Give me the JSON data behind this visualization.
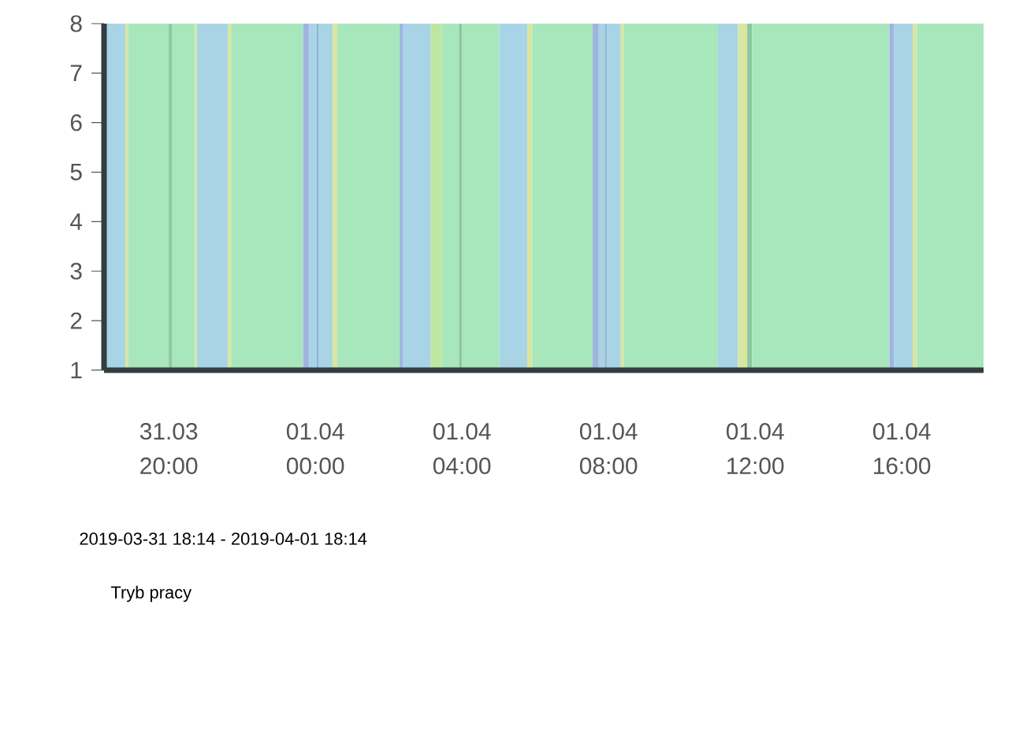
{
  "chart_data": {
    "type": "area",
    "xlim": [
      "2019-03-31T18:14",
      "2019-04-01T18:14"
    ],
    "xticks": [
      {
        "value": "2019-03-31T20:00",
        "label": "31.03 20:00"
      },
      {
        "value": "2019-04-01T00:00",
        "label": "01.04 00:00"
      },
      {
        "value": "2019-04-01T04:00",
        "label": "01.04 04:00"
      },
      {
        "value": "2019-04-01T08:00",
        "label": "01.04 08:00"
      },
      {
        "value": "2019-04-01T12:00",
        "label": "01.04 12:00"
      },
      {
        "value": "2019-04-01T16:00",
        "label": "01.04 16:00"
      }
    ],
    "ylim": [
      1,
      8
    ],
    "yticks": [
      1,
      2,
      3,
      4,
      5,
      6,
      7,
      8
    ],
    "series": [
      {
        "color": "#a8d4e6",
        "x": [
          "2019-03-31T18:14",
          "2019-03-31T18:49"
        ],
        "values": [
          8,
          8
        ]
      },
      {
        "color": "#d8e6a0",
        "x": [
          "2019-03-31T18:49",
          "2019-03-31T18:54"
        ],
        "values": [
          8,
          8
        ]
      },
      {
        "color": "#a8e6bc",
        "x": [
          "2019-03-31T18:54",
          "2019-03-31T20:00"
        ],
        "values": [
          8,
          8
        ]
      },
      {
        "color": "#8cc8a0",
        "x": [
          "2019-03-31T20:00",
          "2019-03-31T20:05"
        ],
        "values": [
          8,
          8
        ]
      },
      {
        "color": "#a8e6bc",
        "x": [
          "2019-03-31T20:05",
          "2019-03-31T20:43"
        ],
        "values": [
          8,
          8
        ]
      },
      {
        "color": "#d8e6a0",
        "x": [
          "2019-03-31T20:43",
          "2019-03-31T20:46"
        ],
        "values": [
          8,
          8
        ]
      },
      {
        "color": "#a8d4e6",
        "x": [
          "2019-03-31T20:46",
          "2019-03-31T21:37"
        ],
        "values": [
          8,
          8
        ]
      },
      {
        "color": "#d8e6a0",
        "x": [
          "2019-03-31T21:37",
          "2019-03-31T21:42"
        ],
        "values": [
          8,
          8
        ]
      },
      {
        "color": "#a8e6bc",
        "x": [
          "2019-03-31T21:42",
          "2019-03-31T23:40"
        ],
        "values": [
          8,
          8
        ]
      },
      {
        "color": "#a0b4e0",
        "x": [
          "2019-03-31T23:40",
          "2019-03-31T23:50"
        ],
        "values": [
          8,
          8
        ]
      },
      {
        "color": "#a8d4e6",
        "x": [
          "2019-03-31T23:50",
          "2019-04-01T00:02"
        ],
        "values": [
          8,
          8
        ]
      },
      {
        "color": "#8fb0d0",
        "x": [
          "2019-04-01T00:02",
          "2019-04-01T00:05"
        ],
        "values": [
          8,
          8
        ]
      },
      {
        "color": "#a8d4e6",
        "x": [
          "2019-04-01T00:05",
          "2019-04-01T00:28"
        ],
        "values": [
          8,
          8
        ]
      },
      {
        "color": "#d8e6a0",
        "x": [
          "2019-04-01T00:28",
          "2019-04-01T00:36"
        ],
        "values": [
          8,
          8
        ]
      },
      {
        "color": "#a8e6bc",
        "x": [
          "2019-04-01T00:36",
          "2019-04-01T02:18"
        ],
        "values": [
          8,
          8
        ]
      },
      {
        "color": "#a0b4e0",
        "x": [
          "2019-04-01T02:18",
          "2019-04-01T02:23"
        ],
        "values": [
          8,
          8
        ]
      },
      {
        "color": "#a8d4e6",
        "x": [
          "2019-04-01T02:23",
          "2019-04-01T03:09"
        ],
        "values": [
          8,
          8
        ]
      },
      {
        "color": "#bfe6a0",
        "x": [
          "2019-04-01T03:09",
          "2019-04-01T03:27"
        ],
        "values": [
          8,
          8
        ]
      },
      {
        "color": "#a8e6bc",
        "x": [
          "2019-04-01T03:27",
          "2019-04-01T03:55"
        ],
        "values": [
          8,
          8
        ]
      },
      {
        "color": "#8cc8a0",
        "x": [
          "2019-04-01T03:55",
          "2019-04-01T04:00"
        ],
        "values": [
          8,
          8
        ]
      },
      {
        "color": "#a8e6bc",
        "x": [
          "2019-04-01T04:00",
          "2019-04-01T05:01"
        ],
        "values": [
          8,
          8
        ]
      },
      {
        "color": "#a8d4e6",
        "x": [
          "2019-04-01T05:01",
          "2019-04-01T05:47"
        ],
        "values": [
          8,
          8
        ]
      },
      {
        "color": "#d8e6a0",
        "x": [
          "2019-04-01T05:47",
          "2019-04-01T05:55"
        ],
        "values": [
          8,
          8
        ]
      },
      {
        "color": "#a8e6bc",
        "x": [
          "2019-04-01T05:55",
          "2019-04-01T07:34"
        ],
        "values": [
          8,
          8
        ]
      },
      {
        "color": "#a0b4e0",
        "x": [
          "2019-04-01T07:34",
          "2019-04-01T07:44"
        ],
        "values": [
          8,
          8
        ]
      },
      {
        "color": "#a8d4e6",
        "x": [
          "2019-04-01T07:44",
          "2019-04-01T07:54"
        ],
        "values": [
          8,
          8
        ]
      },
      {
        "color": "#8fb0d0",
        "x": [
          "2019-04-01T07:54",
          "2019-04-01T07:57"
        ],
        "values": [
          8,
          8
        ]
      },
      {
        "color": "#a8d4e6",
        "x": [
          "2019-04-01T07:57",
          "2019-04-01T08:20"
        ],
        "values": [
          8,
          8
        ]
      },
      {
        "color": "#d8e6a0",
        "x": [
          "2019-04-01T08:20",
          "2019-04-01T08:25"
        ],
        "values": [
          8,
          8
        ]
      },
      {
        "color": "#a8e6bc",
        "x": [
          "2019-04-01T08:25",
          "2019-04-01T10:59"
        ],
        "values": [
          8,
          8
        ]
      },
      {
        "color": "#a8d4e6",
        "x": [
          "2019-04-01T10:59",
          "2019-04-01T11:32"
        ],
        "values": [
          8,
          8
        ]
      },
      {
        "color": "#d8e6a0",
        "x": [
          "2019-04-01T11:32",
          "2019-04-01T11:47"
        ],
        "values": [
          8,
          8
        ]
      },
      {
        "color": "#8cc8a0",
        "x": [
          "2019-04-01T11:47",
          "2019-04-01T11:55"
        ],
        "values": [
          8,
          8
        ]
      },
      {
        "color": "#a8e6bc",
        "x": [
          "2019-04-01T11:55",
          "2019-04-01T15:40"
        ],
        "values": [
          8,
          8
        ]
      },
      {
        "color": "#a0b4e0",
        "x": [
          "2019-04-01T15:40",
          "2019-04-01T15:47"
        ],
        "values": [
          8,
          8
        ]
      },
      {
        "color": "#a8d4e6",
        "x": [
          "2019-04-01T15:47",
          "2019-04-01T16:18"
        ],
        "values": [
          8,
          8
        ]
      },
      {
        "color": "#d8e6a0",
        "x": [
          "2019-04-01T16:18",
          "2019-04-01T16:25"
        ],
        "values": [
          8,
          8
        ]
      },
      {
        "color": "#a8e6bc",
        "x": [
          "2019-04-01T16:25",
          "2019-04-01T18:14"
        ],
        "values": [
          8,
          8
        ]
      }
    ],
    "annotations": [
      "2019-03-31 18:14 - 2019-04-01 18:14",
      "Tryb pracy"
    ]
  }
}
